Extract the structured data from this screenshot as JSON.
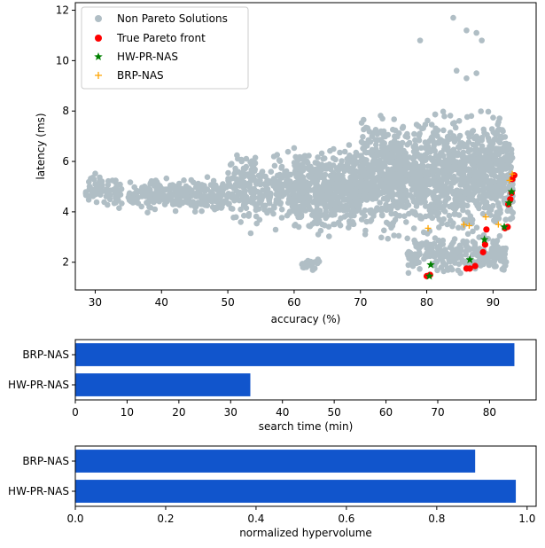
{
  "colors": {
    "non_pareto": "#b0bec5",
    "true_pareto": "#ff0000",
    "hw_pr_nas": "#008000",
    "brp_nas": "#ffa500",
    "bar": "#1155cc"
  },
  "chart_data": [
    {
      "type": "scatter",
      "title": "",
      "xlabel": "accuracy (%)",
      "ylabel": "latency (ms)",
      "xlim": [
        27,
        96.5
      ],
      "ylim": [
        0.9,
        12.3
      ],
      "xticks": [
        30,
        40,
        50,
        60,
        70,
        80,
        90
      ],
      "yticks": [
        2,
        4,
        6,
        8,
        10,
        12
      ],
      "legend": "top-left",
      "legend_entries": [
        "Non Pareto Solutions",
        "True Pareto front",
        "HW-PR-NAS",
        "BRP-NAS"
      ],
      "series": [
        {
          "name": "Non Pareto Solutions",
          "marker": "circle",
          "clusters": [
            {
              "x": [
                28.5,
                34
              ],
              "y": [
                3.9,
                5.8
              ]
            },
            {
              "x": [
                35,
                50
              ],
              "y": [
                3.8,
                5.5
              ]
            },
            {
              "x": [
                50,
                60
              ],
              "y": [
                3.0,
                6.8
              ]
            },
            {
              "x": [
                60,
                70
              ],
              "y": [
                2.8,
                7.0
              ]
            },
            {
              "x": [
                61,
                64
              ],
              "y": [
                1.6,
                2.2
              ]
            },
            {
              "x": [
                70,
                93
              ],
              "y": [
                2.6,
                8.3
              ]
            },
            {
              "x": [
                77,
                92
              ],
              "y": [
                1.4,
                3.2
              ]
            }
          ],
          "outliers": [
            {
              "x": 79,
              "y": 10.8
            },
            {
              "x": 84,
              "y": 11.7
            },
            {
              "x": 86,
              "y": 11.2
            },
            {
              "x": 87.5,
              "y": 11.1
            },
            {
              "x": 88.3,
              "y": 10.8
            },
            {
              "x": 87.5,
              "y": 9.5
            },
            {
              "x": 86,
              "y": 9.3
            },
            {
              "x": 84.5,
              "y": 9.6
            },
            {
              "x": 91.5,
              "y": 7.2
            },
            {
              "x": 92.5,
              "y": 6.5
            }
          ]
        },
        {
          "name": "True Pareto front",
          "marker": "circle",
          "points": [
            {
              "x": 80.0,
              "y": 1.45
            },
            {
              "x": 80.5,
              "y": 1.5
            },
            {
              "x": 86.0,
              "y": 1.75
            },
            {
              "x": 86.5,
              "y": 1.75
            },
            {
              "x": 87.3,
              "y": 1.85
            },
            {
              "x": 88.5,
              "y": 2.4
            },
            {
              "x": 88.8,
              "y": 2.7
            },
            {
              "x": 89.0,
              "y": 3.3
            },
            {
              "x": 91.8,
              "y": 3.35
            },
            {
              "x": 92.2,
              "y": 3.4
            },
            {
              "x": 92.3,
              "y": 4.3
            },
            {
              "x": 92.6,
              "y": 4.5
            },
            {
              "x": 92.8,
              "y": 4.75
            },
            {
              "x": 92.9,
              "y": 5.3
            },
            {
              "x": 93.2,
              "y": 5.45
            }
          ]
        },
        {
          "name": "HW-PR-NAS",
          "marker": "star",
          "points": [
            {
              "x": 80.4,
              "y": 1.45
            },
            {
              "x": 80.6,
              "y": 1.9
            },
            {
              "x": 86.5,
              "y": 2.1
            },
            {
              "x": 88.7,
              "y": 2.9
            },
            {
              "x": 91.7,
              "y": 3.4
            },
            {
              "x": 92.4,
              "y": 4.35
            },
            {
              "x": 92.8,
              "y": 4.8
            }
          ]
        },
        {
          "name": "BRP-NAS",
          "marker": "plus",
          "points": [
            {
              "x": 80.2,
              "y": 3.35
            },
            {
              "x": 85.6,
              "y": 3.5
            },
            {
              "x": 86.4,
              "y": 3.45
            },
            {
              "x": 88.9,
              "y": 3.8
            },
            {
              "x": 90.8,
              "y": 3.5
            },
            {
              "x": 92.5,
              "y": 5.25
            },
            {
              "x": 92.9,
              "y": 5.5
            }
          ]
        }
      ]
    },
    {
      "type": "bar",
      "orientation": "horizontal",
      "xlabel": "search time (min)",
      "ylabel": "",
      "xlim": [
        0,
        89
      ],
      "xticks": [
        0,
        10,
        20,
        30,
        40,
        50,
        60,
        70,
        80
      ],
      "categories": [
        "BRP-NAS",
        "HW-PR-NAS"
      ],
      "values": [
        84.8,
        33.8
      ]
    },
    {
      "type": "bar",
      "orientation": "horizontal",
      "xlabel": "normalized hypervolume",
      "ylabel": "",
      "xlim": [
        0,
        1.02
      ],
      "xticks": [
        "0.0",
        "0.2",
        "0.4",
        "0.6",
        "0.8",
        "1.0"
      ],
      "categories": [
        "BRP-NAS",
        "HW-PR-NAS"
      ],
      "values": [
        0.885,
        0.975
      ]
    }
  ]
}
